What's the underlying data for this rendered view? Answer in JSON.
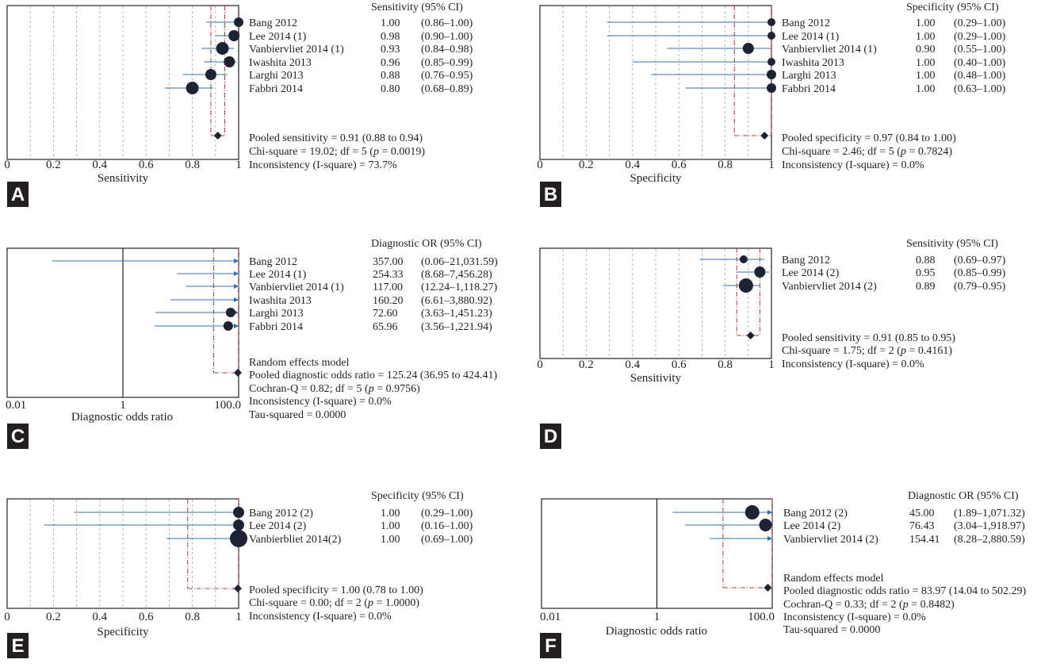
{
  "colors": {
    "ci_line": "#2f6fa8",
    "point": "#1e2233",
    "pooled_dash": "#b03a3a",
    "grid": "#b7b7b7",
    "axis": "#231f20",
    "label_bg": "#231f20"
  },
  "chart_data": [
    {
      "panel": "A",
      "type": "forest",
      "scale": "linear",
      "xlim": [
        0,
        1
      ],
      "ticks": [
        "0",
        "0.2",
        "0.4",
        "0.6",
        "0.8",
        "1"
      ],
      "xlabel": "Sensitivity",
      "header": "Sensitivity (95% CI)",
      "studies": [
        {
          "name": "Bang 2012",
          "value": 1.0,
          "lo": 0.86,
          "hi": 1.0,
          "value_text": "1.00",
          "ci_text": "(0.86–1.00)",
          "weight": 6
        },
        {
          "name": "Lee 2014 (1)",
          "value": 0.98,
          "lo": 0.9,
          "hi": 1.0,
          "value_text": "0.98",
          "ci_text": "(0.90–1.00)",
          "weight": 7
        },
        {
          "name": "Vanbiervliet 2014 (1)",
          "value": 0.93,
          "lo": 0.84,
          "hi": 0.98,
          "value_text": "0.93",
          "ci_text": "(0.84–0.98)",
          "weight": 8
        },
        {
          "name": "Iwashita 2013",
          "value": 0.96,
          "lo": 0.85,
          "hi": 0.99,
          "value_text": "0.96",
          "ci_text": "(0.85–0.99)",
          "weight": 7
        },
        {
          "name": "Larghi 2013",
          "value": 0.88,
          "lo": 0.76,
          "hi": 0.95,
          "value_text": "0.88",
          "ci_text": "(0.76–0.95)",
          "weight": 7
        },
        {
          "name": "Fabbri 2014",
          "value": 0.8,
          "lo": 0.68,
          "hi": 0.89,
          "value_text": "0.80",
          "ci_text": "(0.68–0.89)",
          "weight": 8
        }
      ],
      "pooled": {
        "value": 0.91,
        "lo": 0.88,
        "hi": 0.94
      },
      "summary": [
        "Pooled sensitivity = 0.91 (0.88 to 0.94)",
        "Chi-square = 19.02; df = 5 (p = 0.0019)",
        "Inconsistency (I-square) = 73.7%"
      ]
    },
    {
      "panel": "B",
      "type": "forest",
      "scale": "linear",
      "xlim": [
        0,
        1
      ],
      "ticks": [
        "0",
        "0.2",
        "0.4",
        "0.6",
        "0.8",
        "1"
      ],
      "xlabel": "Specificity",
      "header": "Specificity (95% CI)",
      "studies": [
        {
          "name": "Bang 2012",
          "value": 1.0,
          "lo": 0.29,
          "hi": 1.0,
          "value_text": "1.00",
          "ci_text": "(0.29–1.00)",
          "weight": 5
        },
        {
          "name": "Lee 2014 (1)",
          "value": 1.0,
          "lo": 0.29,
          "hi": 1.0,
          "value_text": "1.00",
          "ci_text": "(0.29–1.00)",
          "weight": 5
        },
        {
          "name": "Vanbiervliet 2014 (1)",
          "value": 0.9,
          "lo": 0.55,
          "hi": 1.0,
          "value_text": "0.90",
          "ci_text": "(0.55–1.00)",
          "weight": 7
        },
        {
          "name": "Iwashita 2013",
          "value": 1.0,
          "lo": 0.4,
          "hi": 1.0,
          "value_text": "1.00",
          "ci_text": "(0.40–1.00)",
          "weight": 5
        },
        {
          "name": "Larghi 2013",
          "value": 1.0,
          "lo": 0.48,
          "hi": 1.0,
          "value_text": "1.00",
          "ci_text": "(0.48–1.00)",
          "weight": 6
        },
        {
          "name": "Fabbri 2014",
          "value": 1.0,
          "lo": 0.63,
          "hi": 1.0,
          "value_text": "1.00",
          "ci_text": "(0.63–1.00)",
          "weight": 6
        }
      ],
      "pooled": {
        "value": 0.97,
        "lo": 0.84,
        "hi": 1.0
      },
      "summary": [
        "Pooled specificity = 0.97 (0.84 to 1.00)",
        "Chi-square = 2.46; df = 5 (p = 0.7824)",
        "Inconsistency (I-square) = 0.0%"
      ]
    },
    {
      "panel": "C",
      "type": "forest",
      "scale": "log",
      "xlim": [
        0.01,
        100.0
      ],
      "ticks": [
        "0.01",
        "1",
        "100.0"
      ],
      "xlabel": "Diagnostic odds ratio",
      "header": "Diagnostic OR (95% CI)",
      "studies": [
        {
          "name": "Bang 2012",
          "value": 357.0,
          "lo": 0.06,
          "hi": 21031.59,
          "value_text": "357.00",
          "ci_text": "(0.06–21,031.59)",
          "weight": 0
        },
        {
          "name": "Lee 2014 (1)",
          "value": 254.33,
          "lo": 8.68,
          "hi": 7456.28,
          "value_text": "254.33",
          "ci_text": "(8.68–7,456.28)",
          "weight": 0
        },
        {
          "name": "Vanbiervliet 2014 (1)",
          "value": 117.0,
          "lo": 12.24,
          "hi": 1118.27,
          "value_text": "117.00",
          "ci_text": "(12.24–1,118.27)",
          "weight": 0
        },
        {
          "name": "Iwashita 2013",
          "value": 160.2,
          "lo": 6.61,
          "hi": 3880.92,
          "value_text": "160.20",
          "ci_text": "(6.61–3,880.92)",
          "weight": 0
        },
        {
          "name": "Larghi 2013",
          "value": 72.6,
          "lo": 3.63,
          "hi": 1451.23,
          "value_text": "72.60",
          "ci_text": "(3.63–1,451.23)",
          "weight": 6
        },
        {
          "name": "Fabbri 2014",
          "value": 65.96,
          "lo": 3.56,
          "hi": 1221.94,
          "value_text": "65.96",
          "ci_text": "(3.56–1,221.94)",
          "weight": 6
        }
      ],
      "pooled": {
        "value": 125.24,
        "lo": 36.95,
        "hi": 424.41
      },
      "summary": [
        "Random effects model",
        "Pooled diagnostic odds ratio = 125.24 (36.95 to 424.41)",
        "Cochran-Q = 0.82; df = 5 (p = 0.9756)",
        "Inconsistency (I-square) = 0.0%",
        "Tau-squared = 0.0000"
      ]
    },
    {
      "panel": "D",
      "type": "forest",
      "scale": "linear",
      "xlim": [
        0,
        1
      ],
      "ticks": [
        "0",
        "0.2",
        "0.4",
        "0.6",
        "0.8",
        "1"
      ],
      "xlabel": "Sensitivity",
      "header": "Sensitivity (95% CI)",
      "studies": [
        {
          "name": "Bang 2012",
          "value": 0.88,
          "lo": 0.69,
          "hi": 0.97,
          "value_text": "0.88",
          "ci_text": "(0.69–0.97)",
          "weight": 5
        },
        {
          "name": "Lee 2014 (2)",
          "value": 0.95,
          "lo": 0.85,
          "hi": 0.99,
          "value_text": "0.95",
          "ci_text": "(0.85–0.99)",
          "weight": 7
        },
        {
          "name": "Vanbiervliet 2014 (2)",
          "value": 0.89,
          "lo": 0.79,
          "hi": 0.95,
          "value_text": "0.89",
          "ci_text": "(0.79–0.95)",
          "weight": 9
        }
      ],
      "pooled": {
        "value": 0.91,
        "lo": 0.85,
        "hi": 0.95
      },
      "summary": [
        "Pooled sensitivity = 0.91 (0.85 to 0.95)",
        "Chi-square = 1.75; df = 2 (p = 0.4161)",
        "Inconsistency (I-square) = 0.0%"
      ]
    },
    {
      "panel": "E",
      "type": "forest",
      "scale": "linear",
      "xlim": [
        0,
        1
      ],
      "ticks": [
        "0",
        "0.2",
        "0.4",
        "0.6",
        "0.8",
        "1"
      ],
      "xlabel": "Specificity",
      "header": "Specificity (95% CI)",
      "studies": [
        {
          "name": "Bang 2012 (2)",
          "value": 1.0,
          "lo": 0.29,
          "hi": 1.0,
          "value_text": "1.00",
          "ci_text": "(0.29–1.00)",
          "weight": 7
        },
        {
          "name": "Lee 2014 (2)",
          "value": 1.0,
          "lo": 0.16,
          "hi": 1.0,
          "value_text": "1.00",
          "ci_text": "(0.16–1.00)",
          "weight": 7
        },
        {
          "name": "Vanbierbliet 2014(2)",
          "value": 1.0,
          "lo": 0.69,
          "hi": 1.0,
          "value_text": "1.00",
          "ci_text": "(0.69–1.00)",
          "weight": 11
        }
      ],
      "pooled": {
        "value": 1.0,
        "lo": 0.78,
        "hi": 1.0
      },
      "summary": [
        "Pooled specificity = 1.00 (0.78 to 1.00)",
        "Chi-square = 0.00; df = 2 (p = 1.0000)",
        "Inconsistency (I-square) = 0.0%"
      ]
    },
    {
      "panel": "F",
      "type": "forest",
      "scale": "log",
      "xlim": [
        0.01,
        100.0
      ],
      "ticks": [
        "0.01",
        "1",
        "100.0"
      ],
      "xlabel": "Diagnostic odds ratio",
      "header": "Diagnostic OR (95% CI)",
      "studies": [
        {
          "name": "Bang 2012 (2)",
          "value": 45.0,
          "lo": 1.89,
          "hi": 1071.32,
          "value_text": "45.00",
          "ci_text": "(1.89–1,071.32)",
          "weight": 9
        },
        {
          "name": "Lee 2014 (2)",
          "value": 76.43,
          "lo": 3.04,
          "hi": 1918.97,
          "value_text": "76.43",
          "ci_text": "(3.04–1,918.97)",
          "weight": 8
        },
        {
          "name": "Vanbiervliet 2014 (2)",
          "value": 154.41,
          "lo": 8.28,
          "hi": 2880.59,
          "value_text": "154.41",
          "ci_text": "(8.28–2,880.59)",
          "weight": 0
        }
      ],
      "pooled": {
        "value": 83.97,
        "lo": 14.04,
        "hi": 502.29
      },
      "summary": [
        "Random effects model",
        "Pooled diagnostic odds ratio = 83.97 (14.04 to 502.29)",
        "Cochran-Q = 0.33; df = 2 (p = 0.8482)",
        "Inconsistency (I-square) = 0.0%",
        "Tau-squared = 0.0000"
      ]
    }
  ]
}
